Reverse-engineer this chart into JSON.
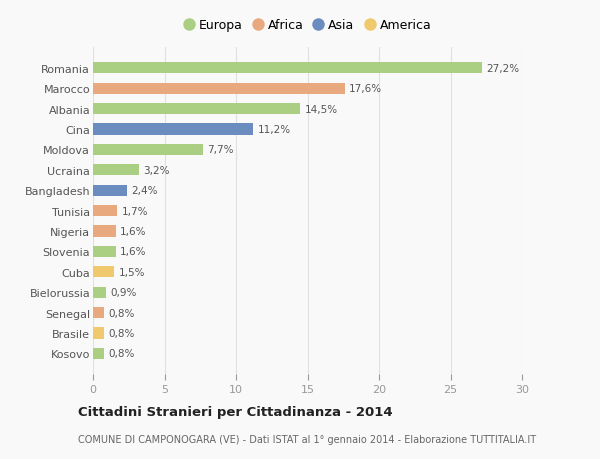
{
  "countries": [
    "Romania",
    "Marocco",
    "Albania",
    "Cina",
    "Moldova",
    "Ucraina",
    "Bangladesh",
    "Tunisia",
    "Nigeria",
    "Slovenia",
    "Cuba",
    "Bielorussia",
    "Senegal",
    "Brasile",
    "Kosovo"
  ],
  "values": [
    27.2,
    17.6,
    14.5,
    11.2,
    7.7,
    3.2,
    2.4,
    1.7,
    1.6,
    1.6,
    1.5,
    0.9,
    0.8,
    0.8,
    0.8
  ],
  "labels": [
    "27,2%",
    "17,6%",
    "14,5%",
    "11,2%",
    "7,7%",
    "3,2%",
    "2,4%",
    "1,7%",
    "1,6%",
    "1,6%",
    "1,5%",
    "0,9%",
    "0,8%",
    "0,8%",
    "0,8%"
  ],
  "continents": [
    "Europa",
    "Africa",
    "Europa",
    "Asia",
    "Europa",
    "Europa",
    "Asia",
    "Africa",
    "Africa",
    "Europa",
    "America",
    "Europa",
    "Africa",
    "America",
    "Europa"
  ],
  "colors": {
    "Europa": "#aacf82",
    "Africa": "#e8a97e",
    "Asia": "#6b8cbf",
    "America": "#f0c96e"
  },
  "legend_order": [
    "Europa",
    "Africa",
    "Asia",
    "America"
  ],
  "title": "Cittadini Stranieri per Cittadinanza - 2014",
  "subtitle": "COMUNE DI CAMPONOGARA (VE) - Dati ISTAT al 1° gennaio 2014 - Elaborazione TUTTITALIA.IT",
  "xlim": [
    0,
    30
  ],
  "xticks": [
    0,
    5,
    10,
    15,
    20,
    25,
    30
  ],
  "background_color": "#f9f9f9",
  "grid_color": "#e8e8e8"
}
